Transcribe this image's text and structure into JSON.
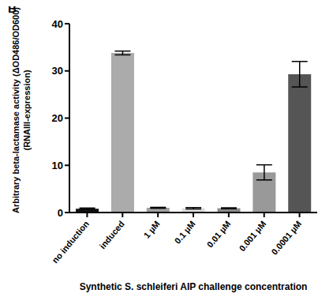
{
  "chart_data": {
    "type": "bar",
    "annotations": [
      "B"
    ],
    "y_label": [
      "Arbitrary beta-lactamase activity (ΔOD486/OD600)",
      "(RNAIII-expression)"
    ],
    "x_label": "Synthetic S. schleiferi AIP challenge concentration",
    "categories": [
      "no induction",
      "induced",
      "1 µM",
      "0.1 µM",
      "0.01 µM",
      "0.001 µM",
      "0.0001 µM"
    ],
    "values": [
      0.8,
      33.8,
      1.0,
      0.9,
      0.9,
      8.5,
      29.3
    ],
    "errors": [
      0.15,
      0.4,
      0.1,
      0.15,
      0.1,
      1.6,
      2.7
    ],
    "colors": [
      "#111111",
      "#ababab",
      "#a0a0a0",
      "#dddddd",
      "#8a8a8a",
      "#999999",
      "#555555"
    ],
    "ylim": [
      0,
      40
    ],
    "yticks": [
      0,
      10,
      20,
      30,
      40
    ],
    "grid": false
  }
}
